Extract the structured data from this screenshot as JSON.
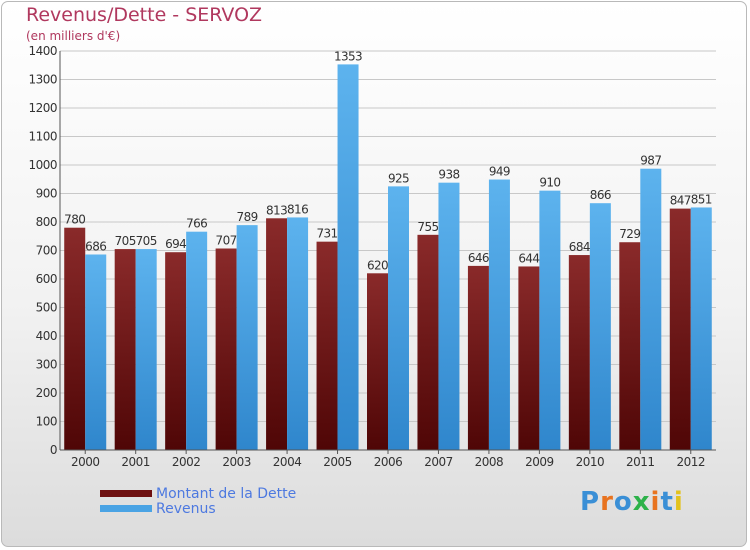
{
  "header": {
    "title": "Revenus/Dette - SERVOZ",
    "subtitle": "(en milliers d'€)"
  },
  "colors": {
    "dette": "#7a1518",
    "revenus": "#4aa3e4",
    "title": "#b0385e",
    "legend_text": "#4d79e0",
    "grid": "#c8c8c8"
  },
  "legend": {
    "items": [
      {
        "label": "Montant de la Dette",
        "color": "#6e1010"
      },
      {
        "label": "Revenus",
        "color": "#4aa3e4"
      }
    ]
  },
  "logo": {
    "text": "Proxiti"
  },
  "chart_data": {
    "type": "bar",
    "categories": [
      "2000",
      "2001",
      "2002",
      "2003",
      "2004",
      "2005",
      "2006",
      "2007",
      "2008",
      "2009",
      "2010",
      "2011",
      "2012"
    ],
    "series": [
      {
        "name": "Montant de la Dette",
        "values": [
          780,
          705,
          694,
          707,
          813,
          731,
          620,
          755,
          646,
          644,
          684,
          729,
          847
        ]
      },
      {
        "name": "Revenus",
        "values": [
          686,
          705,
          766,
          789,
          816,
          1353,
          925,
          938,
          949,
          910,
          866,
          987,
          851
        ]
      }
    ],
    "ylim": [
      0,
      1400
    ],
    "yticks": [
      0,
      100,
      200,
      300,
      400,
      500,
      600,
      700,
      800,
      900,
      1000,
      1100,
      1200,
      1300,
      1400
    ],
    "grid": true,
    "legend_position": "bottom-left"
  }
}
